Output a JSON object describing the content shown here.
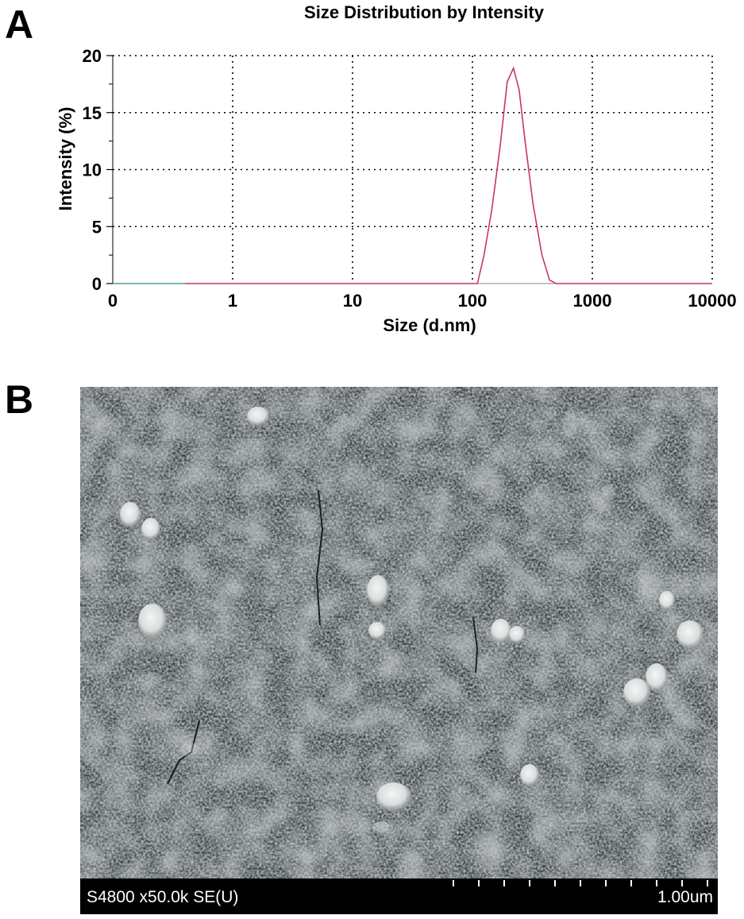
{
  "panels": {
    "a_label": "A",
    "b_label": "B"
  },
  "chart_data": {
    "type": "line",
    "title": "Size Distribution by Intensity",
    "xlabel": "Size (d.nm)",
    "ylabel": "Intensity (%)",
    "x_scale": "log",
    "xlim": [
      0.1,
      10000
    ],
    "ylim": [
      0,
      20
    ],
    "x_tick_labels": [
      "0",
      "1",
      "10",
      "100",
      "1000",
      "10000"
    ],
    "y_tick_labels": [
      "0",
      "5",
      "10",
      "15",
      "20"
    ],
    "grid": true,
    "series_color": "#cc3366",
    "baseline_color": "#2e8b8b",
    "series": [
      {
        "x": [
          0.4,
          1,
          10,
          100,
          110,
          125,
          145,
          170,
          195,
          220,
          245,
          275,
          320,
          380,
          440,
          500,
          600,
          1000,
          5000,
          10000
        ],
        "y": [
          0,
          0,
          0,
          0,
          0,
          2.5,
          6.5,
          12.0,
          17.7,
          18.9,
          17.0,
          12.5,
          7.0,
          2.5,
          0.3,
          0,
          0,
          0,
          0,
          0
        ]
      }
    ]
  },
  "sem_image": {
    "caption": "S4800 x50.0k SE(U)",
    "scale_label": "1.00um"
  }
}
